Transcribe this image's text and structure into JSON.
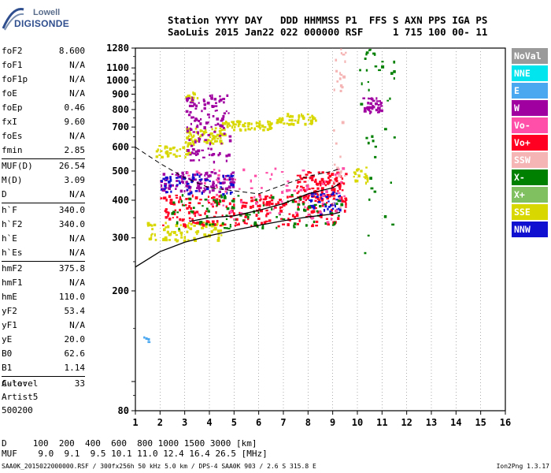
{
  "logo": {
    "line1": "Lowell",
    "line2": "DIGISONDE"
  },
  "header": {
    "line1": "Station YYYY DAY   DDD HHMMSS P1  FFS S AXN PPS IGA PS",
    "line2": "SaoLuis 2015 Jan22 022 000000 RSF     1 715 100 00- 11"
  },
  "params": {
    "group1": [
      {
        "label": "foF2",
        "value": "8.600"
      },
      {
        "label": "foF1",
        "value": "N/A"
      },
      {
        "label": "foF1p",
        "value": "N/A"
      },
      {
        "label": "foE",
        "value": "N/A"
      },
      {
        "label": "foEp",
        "value": "0.46"
      },
      {
        "label": "fxI",
        "value": "9.60"
      },
      {
        "label": "foEs",
        "value": "N/A"
      },
      {
        "label": "fmin",
        "value": "2.85"
      }
    ],
    "group2": [
      {
        "label": "MUF(D)",
        "value": "26.54"
      },
      {
        "label": "M(D)",
        "value": "3.09"
      },
      {
        "label": "D",
        "value": "N/A"
      }
    ],
    "group3": [
      {
        "label": "h`F",
        "value": "340.0"
      },
      {
        "label": "h`F2",
        "value": "340.0"
      },
      {
        "label": "h`E",
        "value": "N/A"
      },
      {
        "label": "h`Es",
        "value": "N/A"
      }
    ],
    "group4": [
      {
        "label": "hmF2",
        "value": "375.8"
      },
      {
        "label": "hmF1",
        "value": "N/A"
      },
      {
        "label": "hmE",
        "value": "110.0"
      },
      {
        "label": "yF2",
        "value": "53.4"
      },
      {
        "label": "yF1",
        "value": "N/A"
      },
      {
        "label": "yE",
        "value": "20.0"
      },
      {
        "label": "B0",
        "value": "62.6"
      },
      {
        "label": "B1",
        "value": "1.14"
      }
    ],
    "group5": [
      {
        "label": "C-level",
        "value": "33"
      }
    ]
  },
  "auto": {
    "line1": "Auto:",
    "line2": "Artist5",
    "line3": "500200"
  },
  "legend": [
    {
      "label": "NoVal",
      "color": "#9a9a9a"
    },
    {
      "label": "NNE",
      "color": "#00e5ee"
    },
    {
      "label": "E",
      "color": "#4aa8f0"
    },
    {
      "label": "W",
      "color": "#a000a0"
    },
    {
      "label": "Vo-",
      "color": "#ff4fa8"
    },
    {
      "label": "Vo+",
      "color": "#ff0022"
    },
    {
      "label": "SSW",
      "color": "#f5b5b5"
    },
    {
      "label": "X-",
      "color": "#008000"
    },
    {
      "label": "X+",
      "color": "#80c060"
    },
    {
      "label": "SSE",
      "color": "#d8d800"
    },
    {
      "label": "NNW",
      "color": "#1010d0"
    }
  ],
  "dmuf": {
    "line1": "D     100  200  400  600  800 1000 1500 3000 [km]",
    "line2": "MUF    9.0  9.1  9.5 10.1 11.0 12.4 16.4 26.5 [MHz]"
  },
  "footer": {
    "left": "SAA0K_2015022000000.RSF / 300fx256h 50 kHz 5.0 km / DPS-4 SAA0K 903 / 2.6 S 315.8 E",
    "right": "Ion2Png 1.3.17"
  },
  "chart_data": {
    "type": "scatter",
    "title": "",
    "xlabel": "",
    "ylabel": "",
    "xlim": [
      1,
      16
    ],
    "ylim": [
      80,
      1280
    ],
    "yscale": "log",
    "x_ticks": [
      1,
      2,
      3,
      4,
      5,
      6,
      7,
      8,
      9,
      10,
      11,
      12,
      13,
      14,
      15,
      16
    ],
    "y_ticks": [
      80,
      100,
      200,
      300,
      400,
      500,
      600,
      700,
      800,
      900,
      1000,
      1100,
      1280
    ],
    "y_tick_labels": [
      "80",
      "",
      "200",
      "300",
      "400",
      "500",
      "600",
      "700",
      "800",
      "900",
      "1000",
      "1100",
      "1280"
    ],
    "grid": "vertical-dotted",
    "legend_position": "right",
    "series": [
      {
        "name": "SSE",
        "color": "#d8d800",
        "clusters": [
          {
            "fmin": 1.8,
            "fmax": 3.2,
            "hmin": 560,
            "hmax": 620,
            "count": 40
          },
          {
            "fmin": 3.0,
            "fmax": 4.6,
            "hmin": 620,
            "hmax": 700,
            "count": 80
          },
          {
            "fmin": 4.5,
            "fmax": 6.5,
            "hmin": 690,
            "hmax": 740,
            "count": 60
          },
          {
            "fmin": 6.5,
            "fmax": 8.3,
            "hmin": 720,
            "hmax": 780,
            "count": 50
          },
          {
            "fmin": 3.0,
            "fmax": 3.5,
            "hmin": 860,
            "hmax": 920,
            "count": 15
          },
          {
            "fmin": 1.4,
            "fmax": 4.5,
            "hmin": 295,
            "hmax": 340,
            "count": 90
          },
          {
            "fmin": 9.8,
            "fmax": 10.4,
            "hmin": 460,
            "hmax": 520,
            "count": 20
          }
        ]
      },
      {
        "name": "W",
        "color": "#a000a0",
        "clusters": [
          {
            "fmin": 2.0,
            "fmax": 5.0,
            "hmin": 430,
            "hmax": 500,
            "count": 120
          },
          {
            "fmin": 3.0,
            "fmax": 4.8,
            "hmin": 540,
            "hmax": 900,
            "count": 120
          },
          {
            "fmin": 10.2,
            "fmax": 11.0,
            "hmin": 780,
            "hmax": 880,
            "count": 40
          }
        ]
      },
      {
        "name": "Vo+",
        "color": "#ff0022",
        "clusters": [
          {
            "fmin": 2.0,
            "fmax": 9.5,
            "hmin": 330,
            "hmax": 420,
            "count": 260
          },
          {
            "fmin": 7.5,
            "fmax": 9.5,
            "hmin": 400,
            "hmax": 500,
            "count": 120
          }
        ]
      },
      {
        "name": "NNW",
        "color": "#1010d0",
        "clusters": [
          {
            "fmin": 2.0,
            "fmax": 5.0,
            "hmin": 420,
            "hmax": 500,
            "count": 50
          },
          {
            "fmin": 8.0,
            "fmax": 9.3,
            "hmin": 360,
            "hmax": 430,
            "count": 40
          }
        ]
      },
      {
        "name": "X-",
        "color": "#008000",
        "clusters": [
          {
            "fmin": 2.0,
            "fmax": 9.5,
            "hmin": 320,
            "hmax": 420,
            "count": 100
          },
          {
            "fmin": 10.0,
            "fmax": 11.5,
            "hmin": 250,
            "hmax": 1280,
            "count": 40
          }
        ]
      },
      {
        "name": "Vo-",
        "color": "#ff4fa8",
        "clusters": [
          {
            "fmin": 3.0,
            "fmax": 9.5,
            "hmin": 340,
            "hmax": 520,
            "count": 80
          }
        ]
      },
      {
        "name": "SSW",
        "color": "#f5b5b5",
        "clusters": [
          {
            "fmin": 9.0,
            "fmax": 9.5,
            "hmin": 300,
            "hmax": 1280,
            "count": 30
          }
        ]
      },
      {
        "name": "E",
        "color": "#4aa8f0",
        "clusters": [
          {
            "fmin": 1.3,
            "fmax": 1.5,
            "hmin": 135,
            "hmax": 145,
            "count": 4
          }
        ]
      }
    ],
    "profile_curve": [
      [
        1,
        240
      ],
      [
        2,
        270
      ],
      [
        3,
        290
      ],
      [
        4,
        305
      ],
      [
        5,
        318
      ],
      [
        6,
        330
      ],
      [
        7,
        342
      ],
      [
        8,
        352
      ],
      [
        9,
        360
      ],
      [
        9.3,
        365
      ]
    ],
    "trace_curve": [
      [
        3.2,
        340
      ],
      [
        4,
        350
      ],
      [
        5,
        355
      ],
      [
        6,
        370
      ],
      [
        7,
        390
      ],
      [
        8,
        420
      ],
      [
        9,
        440
      ],
      [
        9.3,
        455
      ]
    ],
    "dashed_curve": [
      [
        1,
        600
      ],
      [
        2,
        530
      ],
      [
        3,
        475
      ],
      [
        4,
        440
      ],
      [
        5,
        430
      ],
      [
        6,
        420
      ],
      [
        7,
        450
      ],
      [
        8,
        480
      ],
      [
        9,
        500
      ],
      [
        9.3,
        510
      ]
    ]
  }
}
